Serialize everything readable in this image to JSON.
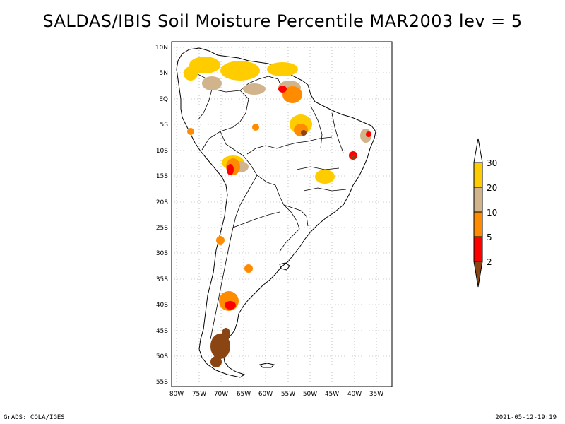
{
  "title": "SALDAS/IBIS Soil Moisture Percentile MAR2003 lev = 5",
  "footer_left": "GrADS: COLA/IGES",
  "footer_right": "2021-05-12-19:19",
  "map": {
    "lat_labels": [
      "10N",
      "5N",
      "EQ",
      "5S",
      "10S",
      "15S",
      "20S",
      "25S",
      "30S",
      "35S",
      "40S",
      "45S",
      "50S",
      "55S"
    ],
    "lon_labels": [
      "80W",
      "75W",
      "70W",
      "65W",
      "60W",
      "55W",
      "50W",
      "45W",
      "40W",
      "35W"
    ],
    "grid": "dotted"
  },
  "colorbar": {
    "levels": [
      "30",
      "20",
      "10",
      "5",
      "2"
    ],
    "colors": {
      "above_30": "#ffffff",
      "20_30": "#ffcc00",
      "10_20": "#d2b48c",
      "5_10": "#ff8c00",
      "2_5": "#ff0000",
      "below_2": "#8b4513"
    }
  }
}
